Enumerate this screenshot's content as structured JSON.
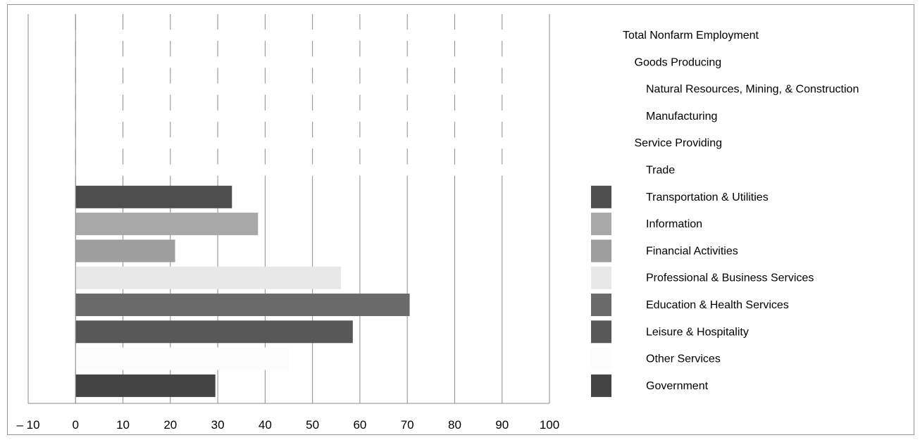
{
  "chart_data": {
    "type": "bar",
    "orientation": "horizontal",
    "title": "",
    "xlabel": "",
    "ylabel": "",
    "xlim": [
      -10,
      100
    ],
    "xticks": [
      -10,
      0,
      10,
      20,
      30,
      40,
      50,
      60,
      70,
      80,
      90,
      100
    ],
    "xtick_labels": [
      "– 10",
      "0",
      "10",
      "20",
      "30",
      "40",
      "50",
      "60",
      "70",
      "80",
      "90",
      "100"
    ],
    "grid": "vertical",
    "legend_position": "right",
    "categories": [
      "Total Nonfarm Employment",
      "Goods Producing",
      "Natural Resources, Mining, & Construction",
      "Manufacturing",
      "Service Providing",
      "Trade",
      "Transportation & Utilities",
      "Information",
      "Financial Activities",
      "Professional & Business Services",
      "Education & Health Services",
      "Leisure & Hospitality",
      "Other Services",
      "Government"
    ],
    "values": [
      null,
      null,
      null,
      null,
      null,
      null,
      33,
      38.5,
      21,
      56,
      70.5,
      58.5,
      45,
      29.5
    ],
    "colors": [
      "#ffffff",
      "#ffffff",
      "#ffffff",
      "#ffffff",
      "#ffffff",
      "#ffffff",
      "#4e4e4e",
      "#a8a8a8",
      "#9e9e9e",
      "#e8e8e8",
      "#6a6a6a",
      "#585858",
      "#fcfcfc",
      "#444444"
    ],
    "legend_indent": [
      0,
      1,
      2,
      2,
      1,
      2,
      2,
      2,
      2,
      2,
      2,
      2,
      2,
      2
    ]
  }
}
